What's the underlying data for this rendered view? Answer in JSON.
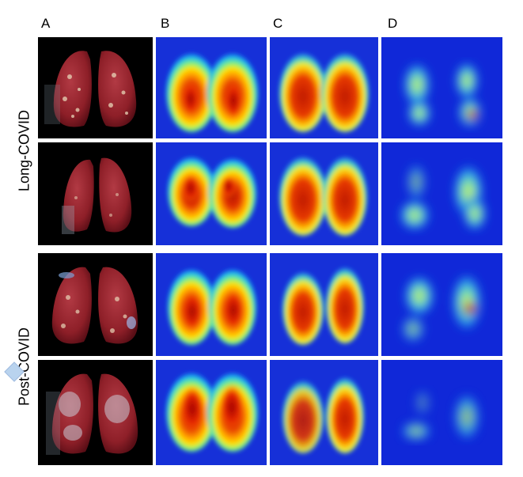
{
  "columns": [
    "A",
    "B",
    "C",
    "D"
  ],
  "rows": [
    "Long-COVID",
    "Post-COVID"
  ],
  "panel_types": {
    "A": "3D rendered lung segmentation (dark red lungs on black)",
    "B": "heatmap perfusion map",
    "C": "heatmap smoothed lung map",
    "D": "heatmap difference map"
  }
}
